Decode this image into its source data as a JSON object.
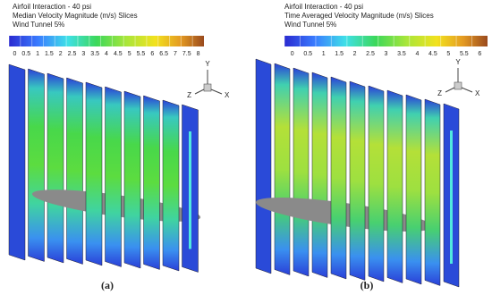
{
  "panels": [
    {
      "title_lines": [
        "Airfoil Interaction - 40 psi",
        "Median Velocity Magnitude (m/s) Slices",
        "Wind Tunnel 5%"
      ],
      "colorbar_labels": [
        "0",
        "0.5",
        "1",
        "1.5",
        "2",
        "2.5",
        "3",
        "3.5",
        "4",
        "4.5",
        "5",
        "5.5",
        "6",
        "6.5",
        "7",
        "7.5",
        "8"
      ],
      "axes": {
        "y": "Y",
        "z": "Z",
        "x": "X"
      },
      "caption": "(a)"
    },
    {
      "title_lines": [
        "Airfoil Interaction - 40 psi",
        "Time Averaged Velocity Magnitude (m/s) Slices",
        "Wind Tunnel 5%"
      ],
      "colorbar_labels": [
        "0",
        "0.5",
        "1",
        "1.5",
        "2",
        "2.5",
        "3",
        "3.5",
        "4",
        "4.5",
        "5",
        "5.5",
        "6"
      ],
      "axes": {
        "y": "Y",
        "z": "Z",
        "x": "X"
      },
      "caption": "(b)"
    }
  ]
}
